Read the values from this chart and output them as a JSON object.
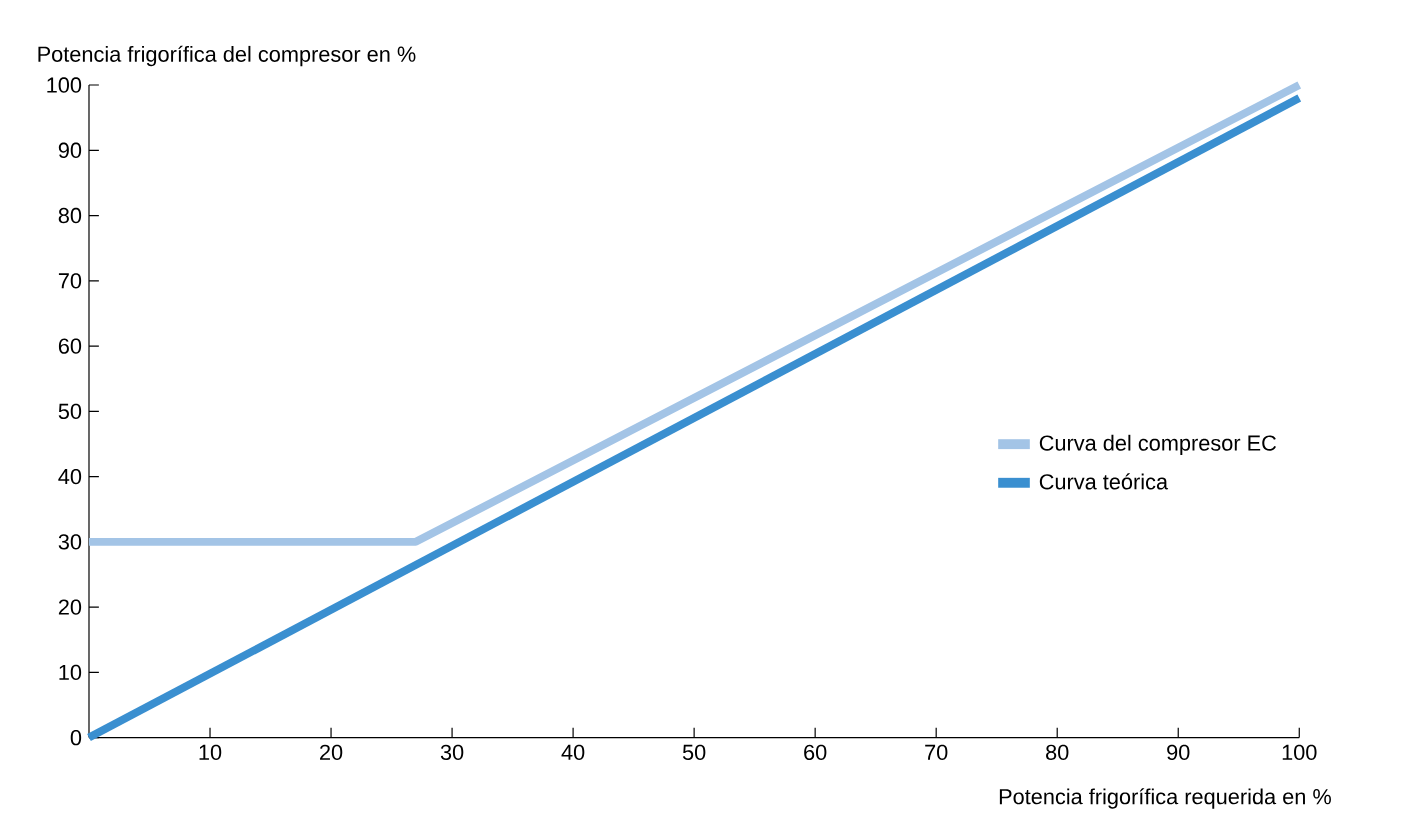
{
  "chart_data": {
    "type": "line",
    "xlabel": "Potencia frigorífica requerida en %",
    "ylabel": "Potencia frigorífica del compresor en %",
    "xlim": [
      0,
      100
    ],
    "ylim": [
      0,
      100
    ],
    "xticks": [
      10,
      20,
      30,
      40,
      50,
      60,
      70,
      80,
      90,
      100
    ],
    "yticks": [
      0,
      10,
      20,
      30,
      40,
      50,
      60,
      70,
      80,
      90,
      100
    ],
    "series": [
      {
        "name": "Curva del compresor EC",
        "color": "#a3c4e6",
        "x": [
          0,
          27,
          100
        ],
        "values": [
          30,
          30,
          100
        ]
      },
      {
        "name": "Curva teórica",
        "color": "#3a8fd0",
        "x": [
          0,
          100
        ],
        "values": [
          0,
          98
        ]
      }
    ],
    "legend": "right",
    "grid": false,
    "marker": "none",
    "line_style": "solid"
  }
}
